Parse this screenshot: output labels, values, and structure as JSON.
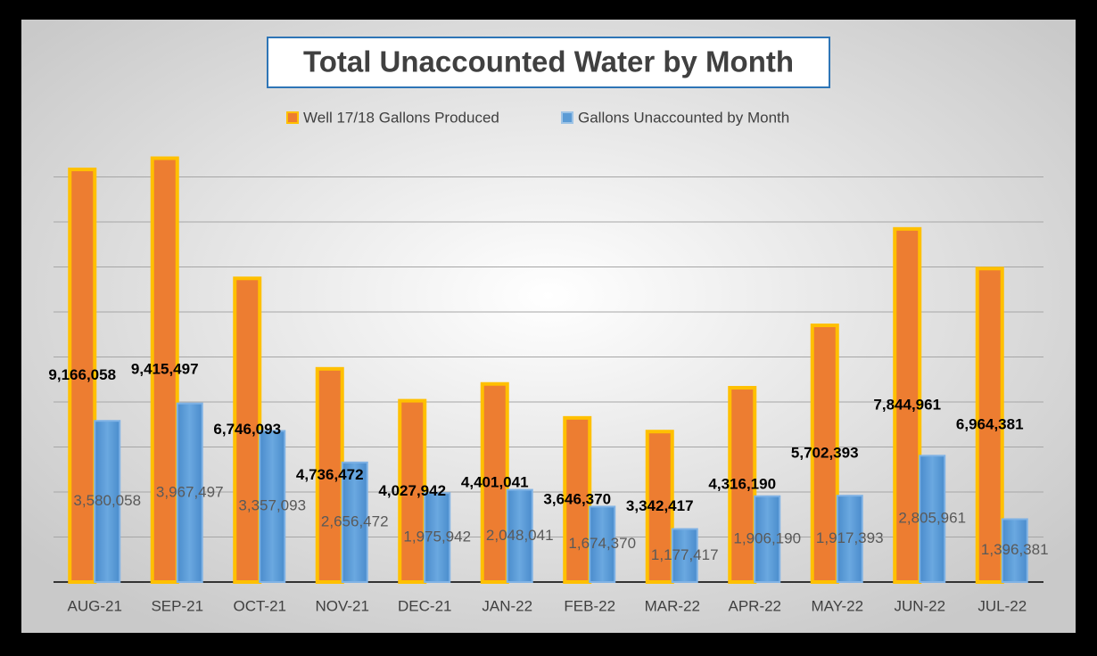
{
  "chart_data": {
    "type": "bar",
    "title": "Total Unaccounted Water by Month",
    "categories": [
      "AUG-21",
      "SEP-21",
      "OCT-21",
      "NOV-21",
      "DEC-21",
      "JAN-22",
      "FEB-22",
      "MAR-22",
      "APR-22",
      "MAY-22",
      "JUN-22",
      "JUL-22"
    ],
    "series": [
      {
        "name": "Well 17/18 Gallons Produced",
        "color": "#ed7d31",
        "values": [
          9166058,
          9415497,
          6746093,
          4736472,
          4027942,
          4401041,
          3646370,
          3342417,
          4316190,
          5702393,
          7844961,
          6964381
        ],
        "value_labels": [
          "9,166,058",
          "9,415,497",
          "6,746,093",
          "4,736,472",
          "4,027,942",
          "4,401,041",
          "3,646,370",
          "3,342,417",
          "4,316,190",
          "5,702,393",
          "7,844,961",
          "6,964,381"
        ]
      },
      {
        "name": "Gallons Unaccounted by Month",
        "color": "#5b9bd5",
        "values": [
          3580058,
          3967497,
          3357093,
          2656472,
          1975942,
          2048041,
          1674370,
          1177417,
          1906190,
          1917393,
          2805961,
          1396381
        ],
        "value_labels": [
          "3,580,058",
          "3,967,497",
          "3,357,093",
          "2,656,472",
          "1,975,942",
          "2,048,041",
          "1,674,370",
          "1,177,417",
          "1,906,190",
          "1,917,393",
          "2,805,961",
          "1,396,381"
        ]
      }
    ],
    "ylim": [
      0,
      10000000
    ],
    "yticks": [
      0,
      1000000,
      2000000,
      3000000,
      4000000,
      5000000,
      6000000,
      7000000,
      8000000,
      9000000
    ],
    "grid": true,
    "legend": "top"
  }
}
